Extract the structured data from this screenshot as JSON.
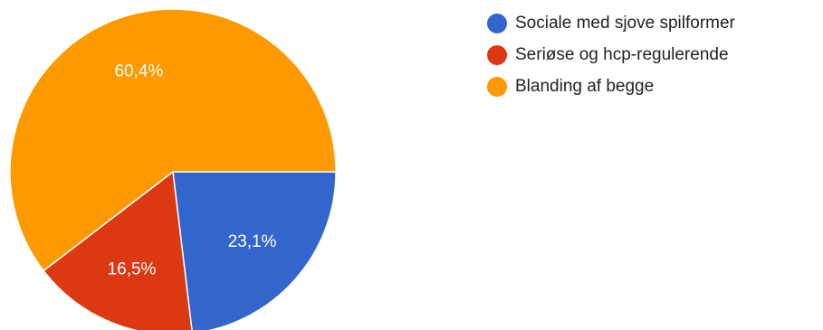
{
  "chart_data": {
    "type": "pie",
    "categories": [
      "Sociale med sjove spilformer",
      "Seriøse og hcp-regulerende",
      "Blanding af begge"
    ],
    "values": [
      23.1,
      16.5,
      60.4
    ],
    "value_labels": [
      "23,1%",
      "16,5%",
      "60,4%"
    ],
    "colors": [
      "#3366cc",
      "#dc3912",
      "#ff9900"
    ],
    "legend": "right"
  }
}
